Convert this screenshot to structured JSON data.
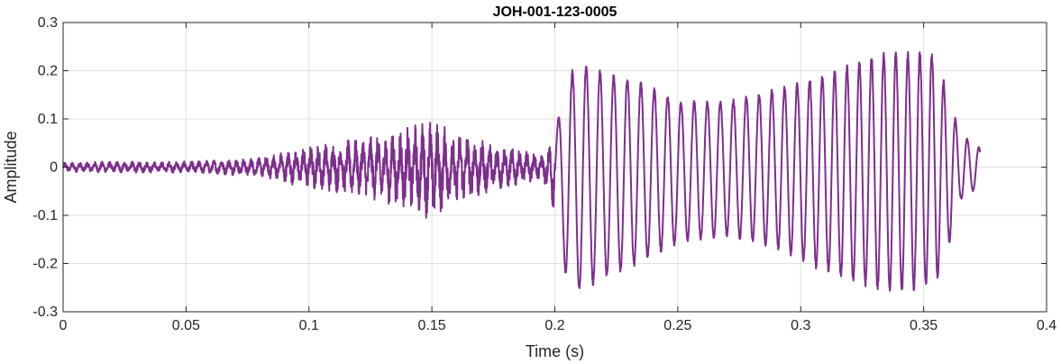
{
  "chart_data": {
    "type": "line",
    "title": "JOH-001-123-0005",
    "xlabel": "Time (s)",
    "ylabel": "Amplitude",
    "xlim": [
      0,
      0.4
    ],
    "ylim": [
      -0.3,
      0.3
    ],
    "xticks": [
      0,
      0.05,
      0.1,
      0.15,
      0.2,
      0.25,
      0.3,
      0.35,
      0.4
    ],
    "xtick_labels": [
      "0",
      "0.05",
      "0.1",
      "0.15",
      "0.2",
      "0.25",
      "0.3",
      "0.35",
      "0.4"
    ],
    "yticks": [
      -0.3,
      -0.2,
      -0.1,
      0,
      0.1,
      0.2,
      0.3
    ],
    "ytick_labels": [
      "-0.3",
      "-0.2",
      "-0.1",
      "0",
      "0.1",
      "0.2",
      "0.3"
    ],
    "grid": true,
    "color": "#7E2F8E",
    "duration": 0.373,
    "envelope": {
      "t": [
        0,
        0.02,
        0.05,
        0.08,
        0.1,
        0.12,
        0.14,
        0.15,
        0.16,
        0.18,
        0.195,
        0.2,
        0.205,
        0.21,
        0.22,
        0.235,
        0.25,
        0.27,
        0.29,
        0.31,
        0.33,
        0.34,
        0.355,
        0.36,
        0.365,
        0.373
      ],
      "upper": [
        0.01,
        0.012,
        0.012,
        0.02,
        0.045,
        0.06,
        0.085,
        0.1,
        0.075,
        0.045,
        0.025,
        0.07,
        0.19,
        0.22,
        0.2,
        0.18,
        0.14,
        0.14,
        0.165,
        0.195,
        0.235,
        0.245,
        0.24,
        0.15,
        0.07,
        0.04
      ],
      "lower": [
        -0.01,
        -0.012,
        -0.012,
        -0.02,
        -0.045,
        -0.06,
        -0.09,
        -0.11,
        -0.08,
        -0.045,
        -0.025,
        -0.1,
        -0.24,
        -0.26,
        -0.235,
        -0.2,
        -0.16,
        -0.145,
        -0.17,
        -0.22,
        -0.255,
        -0.265,
        -0.245,
        -0.17,
        -0.07,
        -0.04
      ]
    }
  }
}
